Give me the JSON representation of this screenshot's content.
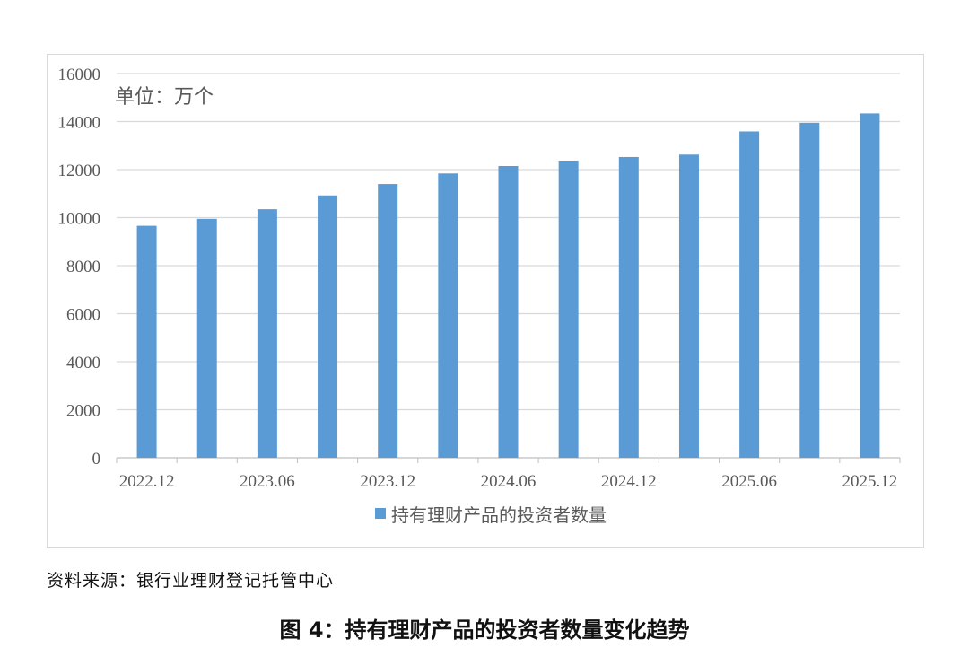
{
  "chart_data": {
    "type": "bar",
    "unit_label": "单位：万个",
    "tick_labels": [
      "2022.12",
      "2023.06",
      "2023.12",
      "2024.06",
      "2024.12",
      "2025.06",
      "2025.12"
    ],
    "values": [
      9660,
      9950,
      10350,
      10925,
      11400,
      11840,
      12150,
      12375,
      12525,
      12625,
      13590,
      13950,
      14340
    ],
    "series": [
      {
        "name": "持有理财产品的投资者数量",
        "color": "#5b9bd5"
      }
    ],
    "yticks": [
      "0",
      "2000",
      "4000",
      "6000",
      "8000",
      "10000",
      "12000",
      "14000",
      "16000"
    ],
    "ylim": [
      0,
      16000
    ],
    "grid": true,
    "legend": "bottom"
  },
  "source": "资料来源：银行业理财登记托管中心",
  "caption": "图 4：持有理财产品的投资者数量变化趋势"
}
